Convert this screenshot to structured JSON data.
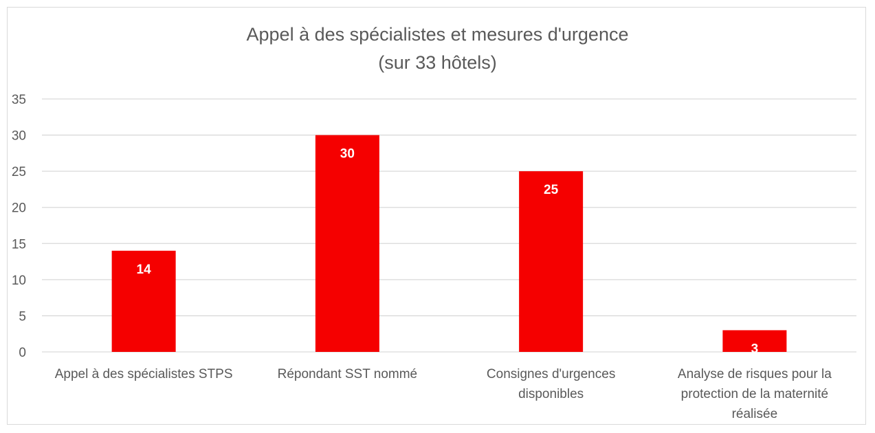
{
  "chart_data": {
    "type": "bar",
    "title_line1": "Appel à des spécialistes et mesures d'urgence",
    "title_line2": "(sur 33 hôtels)",
    "categories": [
      [
        "Appel à des spécialistes STPS"
      ],
      [
        "Répondant SST nommé"
      ],
      [
        "Consignes d'urgences",
        "disponibles"
      ],
      [
        "Analyse de risques pour la",
        "protection de la maternité",
        "réalisée"
      ]
    ],
    "values": [
      14,
      30,
      25,
      3
    ],
    "ylim": [
      0,
      35
    ],
    "yticks": [
      0,
      5,
      10,
      15,
      20,
      25,
      30,
      35
    ],
    "grid": true,
    "bar_color": "#f50000",
    "data_labels": true
  }
}
